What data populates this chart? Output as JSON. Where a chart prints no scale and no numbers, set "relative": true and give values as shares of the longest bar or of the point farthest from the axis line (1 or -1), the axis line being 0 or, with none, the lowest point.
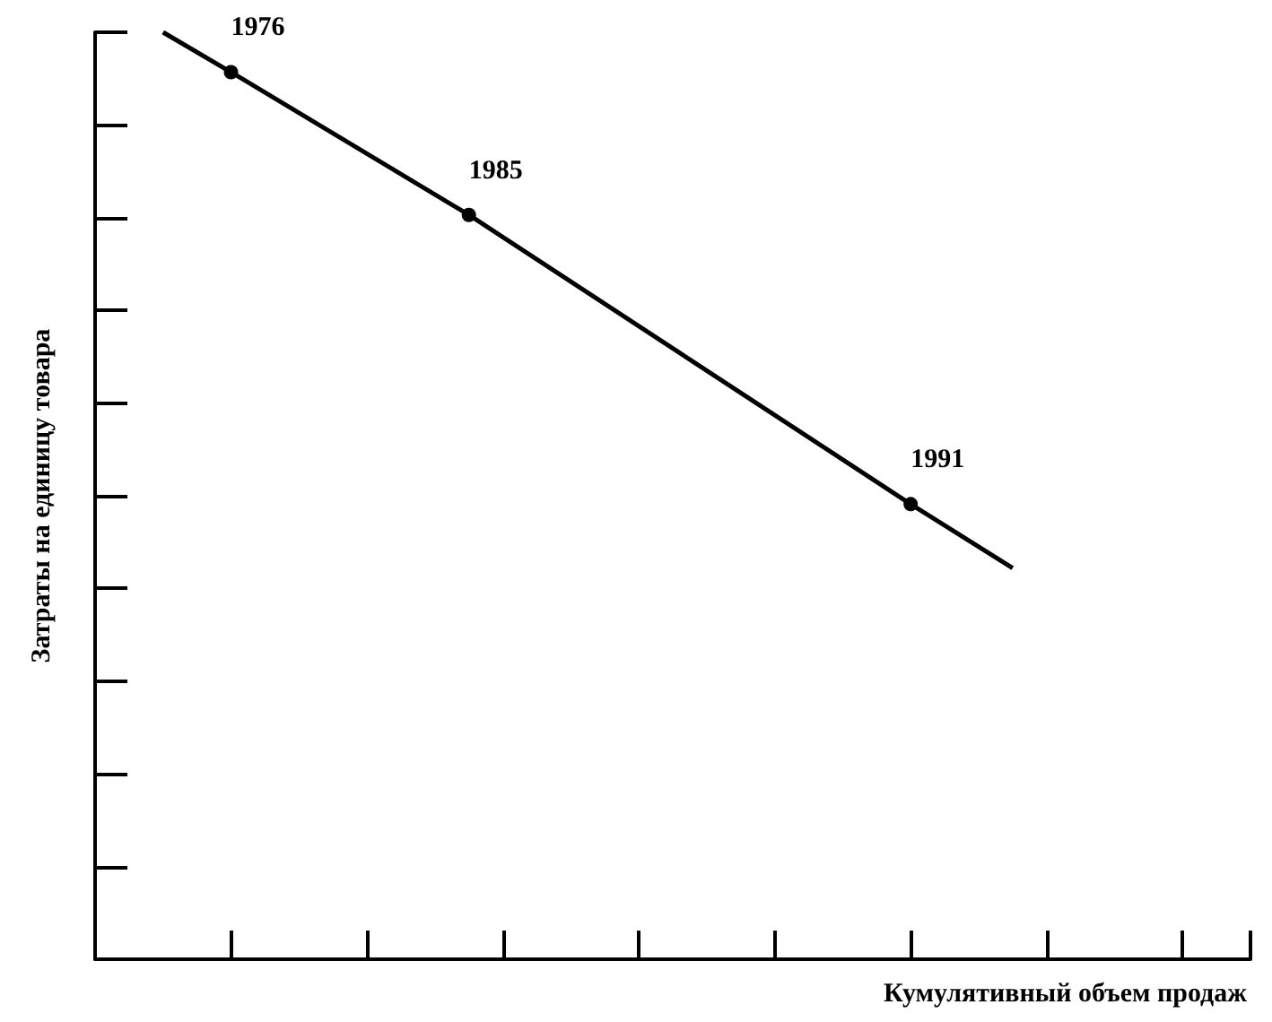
{
  "chart_data": {
    "type": "line",
    "relative": true,
    "xlabel": "Кумулятивный объем продаж",
    "ylabel": "Затраты на единицу товара",
    "categories": [
      null,
      null,
      null,
      null,
      null,
      null,
      null,
      null,
      null,
      null,
      null,
      null,
      null,
      null,
      null,
      null,
      null,
      null,
      null,
      null,
      null,
      null,
      null,
      null,
      null,
      null,
      null,
      null,
      null,
      null,
      null,
      null,
      null,
      null,
      null
    ],
    "series": [
      {
        "color": "#000000",
        "values": [
          null,
          null,
          1,
          null,
          0.957,
          null,
          null,
          null,
          null,
          null,
          null,
          0.803,
          null,
          null,
          null,
          null,
          null,
          null,
          null,
          null,
          null,
          null,
          null,
          null,
          0.491,
          null,
          null,
          0.422,
          null,
          null,
          null,
          null,
          null,
          null,
          null
        ]
      }
    ],
    "annotations": [
      "1976",
      "1985",
      "1991"
    ],
    "marker": "circle",
    "line_style": "solid",
    "grid": false
  }
}
